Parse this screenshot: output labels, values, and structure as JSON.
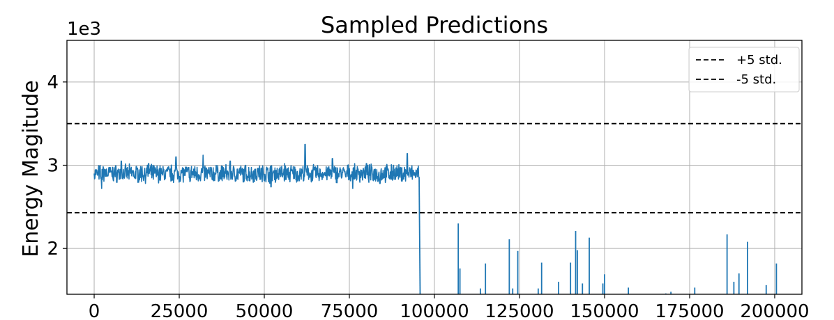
{
  "chart_data": {
    "type": "line",
    "title": "Sampled Predictions",
    "xlabel": "",
    "ylabel": "Energy Magitude",
    "y_scale_label": "1e3",
    "xlim": [
      -8000,
      208000
    ],
    "ylim": [
      1.45,
      4.5
    ],
    "x_ticks": [
      0,
      25000,
      50000,
      75000,
      100000,
      125000,
      150000,
      175000,
      200000
    ],
    "x_tick_labels": [
      "0",
      "25000",
      "50000",
      "75000",
      "100000",
      "125000",
      "150000",
      "175000",
      "200000"
    ],
    "y_ticks": [
      2,
      3,
      4
    ],
    "y_tick_labels": [
      "2",
      "3",
      "4"
    ],
    "grid": true,
    "legend_position": "top-right",
    "colors": {
      "series": "#1f77b4",
      "threshold": "#000000",
      "grid": "#b0b0b0"
    },
    "thresholds": [
      {
        "name": "+5 std.",
        "y": 3.5
      },
      {
        "name": "-5 std.",
        "y": 2.43
      }
    ],
    "series": [
      {
        "segment": "stable",
        "x_start": 0,
        "x_end": 95500,
        "mean": 2.9,
        "noise_amplitude": 0.09,
        "points": [
          [
            0,
            2.9
          ],
          [
            1000,
            2.88
          ],
          [
            2000,
            2.84
          ],
          [
            2200,
            2.72
          ],
          [
            3000,
            2.95
          ],
          [
            5000,
            2.93
          ],
          [
            8000,
            3.05
          ],
          [
            12000,
            2.86
          ],
          [
            16000,
            3.02
          ],
          [
            20000,
            2.9
          ],
          [
            24000,
            3.1
          ],
          [
            28000,
            2.85
          ],
          [
            32000,
            3.12
          ],
          [
            36000,
            2.95
          ],
          [
            40000,
            3.05
          ],
          [
            44000,
            2.8
          ],
          [
            48000,
            2.96
          ],
          [
            52000,
            2.74
          ],
          [
            56000,
            3.02
          ],
          [
            60000,
            2.85
          ],
          [
            62000,
            3.25
          ],
          [
            66000,
            2.9
          ],
          [
            70000,
            3.08
          ],
          [
            74000,
            2.86
          ],
          [
            76000,
            2.72
          ],
          [
            80000,
            3.02
          ],
          [
            84000,
            2.78
          ],
          [
            88000,
            3.0
          ],
          [
            92000,
            3.14
          ],
          [
            94000,
            2.88
          ],
          [
            95500,
            2.86
          ]
        ]
      },
      {
        "segment": "drop",
        "points": [
          [
            95500,
            2.86
          ],
          [
            95800,
            1.45
          ]
        ]
      }
    ],
    "spikes": [
      [
        107000,
        2.3
      ],
      [
        107500,
        1.76
      ],
      [
        113500,
        1.52
      ],
      [
        115000,
        1.82
      ],
      [
        122000,
        2.11
      ],
      [
        123000,
        1.52
      ],
      [
        124500,
        1.97
      ],
      [
        130500,
        1.52
      ],
      [
        131500,
        1.83
      ],
      [
        136500,
        1.6
      ],
      [
        140000,
        1.83
      ],
      [
        141500,
        2.21
      ],
      [
        142000,
        1.98
      ],
      [
        143500,
        1.58
      ],
      [
        145500,
        2.13
      ],
      [
        149500,
        1.58
      ],
      [
        150000,
        1.69
      ],
      [
        157000,
        1.53
      ],
      [
        168000,
        1.46
      ],
      [
        169500,
        1.48
      ],
      [
        176500,
        1.53
      ],
      [
        186000,
        2.17
      ],
      [
        188000,
        1.6
      ],
      [
        189500,
        1.7
      ],
      [
        192000,
        2.08
      ],
      [
        197500,
        1.56
      ],
      [
        200500,
        1.82
      ]
    ]
  }
}
